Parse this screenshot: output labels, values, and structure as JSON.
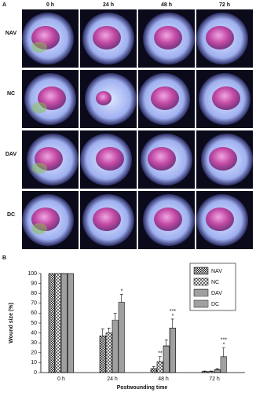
{
  "panel_a": {
    "label": "A",
    "columns": [
      "0 h",
      "24 h",
      "48 h",
      "72 h"
    ],
    "rows": [
      "NAV",
      "NC",
      "DAV",
      "DC"
    ]
  },
  "chart_data": {
    "type": "bar",
    "label": "B",
    "y_label": "Wound size (%)",
    "x_label": "Postwounding time",
    "categories": [
      "0 h",
      "24 h",
      "48 h",
      "72 h"
    ],
    "ylim": [
      0,
      100
    ],
    "yticks": [
      0,
      10,
      20,
      30,
      40,
      50,
      60,
      70,
      80,
      90,
      100
    ],
    "grid": false,
    "series": [
      {
        "name": "NAV",
        "pattern": "check",
        "values": [
          100,
          37,
          4,
          1
        ],
        "errors": [
          0,
          7,
          2,
          0.5
        ],
        "significance": [
          null,
          null,
          null,
          null
        ]
      },
      {
        "name": "NC",
        "pattern": "diamond",
        "values": [
          100,
          40,
          11,
          1
        ],
        "errors": [
          0,
          5,
          5,
          0.5
        ],
        "significance": [
          null,
          null,
          [
            "**"
          ],
          null
        ]
      },
      {
        "name": "DAV",
        "pattern": "hlines",
        "values": [
          100,
          53,
          27,
          3
        ],
        "errors": [
          0,
          7,
          6,
          1
        ],
        "significance": [
          null,
          null,
          null,
          null
        ]
      },
      {
        "name": "DC",
        "pattern": "vlines",
        "values": [
          100,
          71,
          45,
          16
        ],
        "errors": [
          0,
          8,
          9,
          9
        ],
        "significance": [
          null,
          [
            "*"
          ],
          [
            "***",
            "*"
          ],
          [
            "***",
            "*"
          ]
        ]
      }
    ]
  }
}
